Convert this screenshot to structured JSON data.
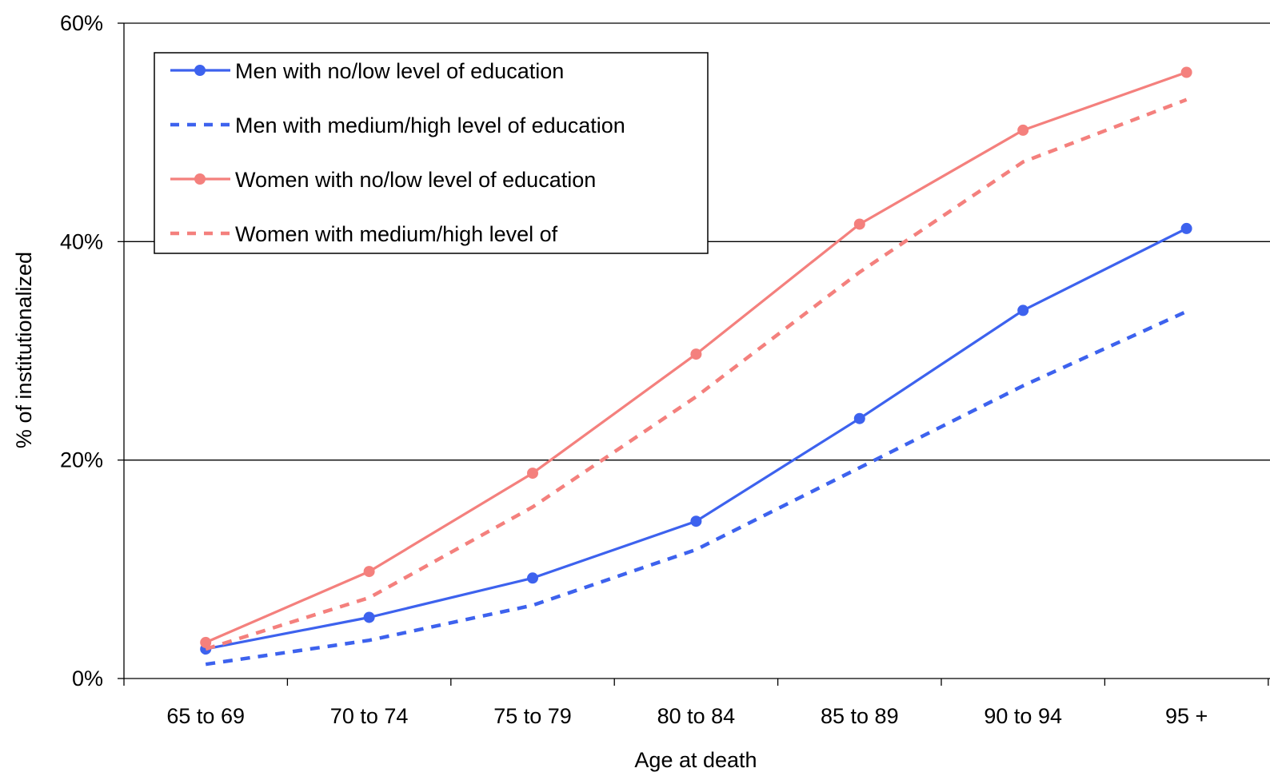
{
  "chart_data": {
    "type": "line",
    "title": "",
    "xlabel": "Age at death",
    "ylabel": "% of institutionalized",
    "categories": [
      "65 to 69",
      "70 to 74",
      "75 to 79",
      "80 to 84",
      "85 to 89",
      "90 to 94",
      "95 +"
    ],
    "ylim": [
      0,
      60
    ],
    "yticks": [
      0,
      20,
      40,
      60
    ],
    "ytick_labels": [
      "0%",
      "20%",
      "40%",
      "60%"
    ],
    "grid": "horizontal major gridlines",
    "legend_position": "top-left",
    "series": [
      {
        "name": "Men with no/low level of education",
        "values": [
          2.7,
          5.6,
          9.2,
          14.4,
          23.8,
          33.7,
          41.2
        ],
        "color": "#3d62ee",
        "style": "solid",
        "markers": true
      },
      {
        "name": "Men with medium/high level of education",
        "values": [
          1.3,
          3.5,
          6.7,
          11.8,
          19.3,
          26.8,
          33.6
        ],
        "color": "#3d62ee",
        "style": "dashed",
        "markers": false
      },
      {
        "name": "Women with no/low level of education",
        "values": [
          3.3,
          9.8,
          18.8,
          29.7,
          41.6,
          50.2,
          55.5
        ],
        "color": "#f4807d",
        "style": "solid",
        "markers": true
      },
      {
        "name": "Women with medium/high level of",
        "values": [
          2.7,
          7.4,
          15.7,
          25.8,
          37.2,
          47.3,
          53.0
        ],
        "color": "#f4807d",
        "style": "dashed",
        "markers": false
      }
    ]
  }
}
